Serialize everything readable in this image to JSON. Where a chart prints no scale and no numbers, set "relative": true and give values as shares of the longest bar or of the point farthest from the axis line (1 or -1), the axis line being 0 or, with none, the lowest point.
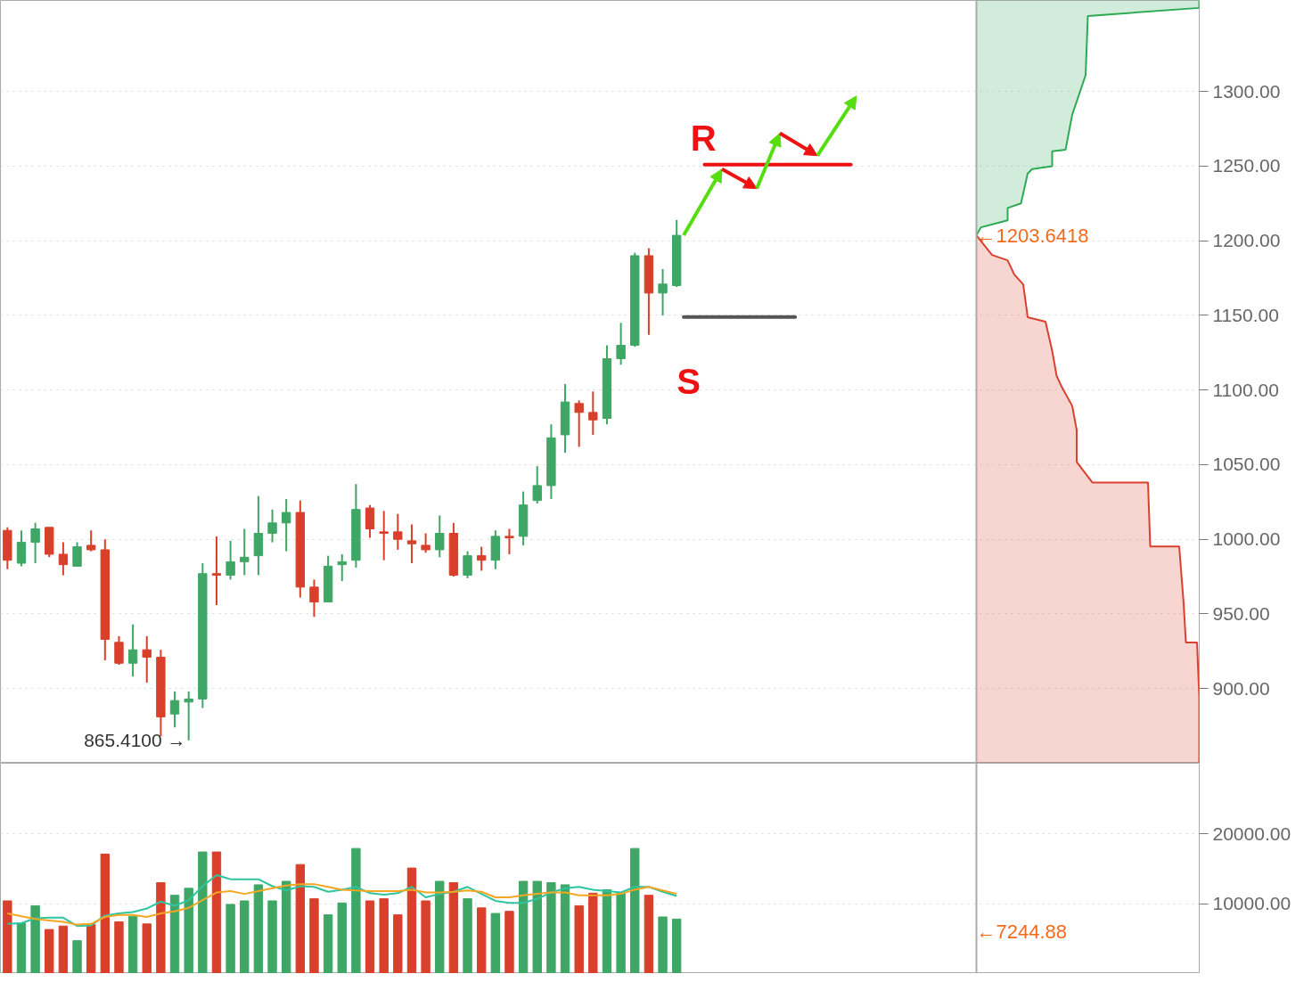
{
  "chart_data": [
    {
      "type": "candlestick",
      "categories": [
        null,
        null,
        null,
        null,
        null,
        null,
        null,
        null,
        null,
        null,
        null,
        null,
        null,
        null,
        null,
        null,
        null,
        null,
        null,
        null,
        null,
        null,
        null,
        null,
        null,
        null,
        null,
        null,
        null,
        null,
        null,
        null,
        null,
        null,
        null,
        null,
        null,
        null,
        null,
        null,
        null,
        null,
        null,
        null,
        null,
        null,
        null,
        null,
        null
      ],
      "ohlc": [
        [
          1006,
          1008,
          980,
          986
        ],
        [
          984,
          1006,
          982,
          998
        ],
        [
          998,
          1011,
          984,
          1007
        ],
        [
          1008,
          1008,
          988,
          990
        ],
        [
          990,
          998,
          976,
          983
        ],
        [
          982,
          998,
          982,
          995
        ],
        [
          996,
          1006,
          992,
          993
        ],
        [
          993,
          1000,
          919,
          933
        ],
        [
          931,
          935,
          916,
          917
        ],
        [
          917,
          943,
          908,
          926
        ],
        [
          926,
          935,
          904,
          921
        ],
        [
          921,
          926,
          868,
          881
        ],
        [
          883,
          898,
          874,
          892
        ],
        [
          891,
          898,
          865.41,
          893
        ],
        [
          893,
          984,
          887,
          977
        ],
        [
          977,
          1002,
          956,
          976
        ],
        [
          976,
          999,
          973,
          985
        ],
        [
          985,
          1007,
          976,
          988
        ],
        [
          989,
          1029,
          976,
          1004
        ],
        [
          1004,
          1020,
          998,
          1011
        ],
        [
          1011,
          1027,
          992,
          1018
        ],
        [
          1018,
          1026,
          961,
          968
        ],
        [
          968,
          973,
          948,
          958
        ],
        [
          958,
          989,
          958,
          982
        ],
        [
          983,
          990,
          972,
          985
        ],
        [
          986,
          1037,
          981,
          1020
        ],
        [
          1021,
          1023,
          1001,
          1007
        ],
        [
          1005,
          1019,
          986,
          1004
        ],
        [
          1005,
          1017,
          993,
          1000
        ],
        [
          999,
          1010,
          984,
          997
        ],
        [
          996,
          1004,
          991,
          993
        ],
        [
          993,
          1016,
          988,
          1004
        ],
        [
          1004,
          1011,
          975,
          976
        ],
        [
          976,
          992,
          974,
          989
        ],
        [
          989,
          995,
          979,
          986
        ],
        [
          986,
          1006,
          980,
          1002
        ],
        [
          1002,
          1007,
          990,
          1001
        ],
        [
          1002,
          1032,
          996,
          1023
        ],
        [
          1026,
          1049,
          1024,
          1036
        ],
        [
          1036,
          1077,
          1027,
          1068
        ],
        [
          1070,
          1104,
          1058,
          1092
        ],
        [
          1091,
          1093,
          1062,
          1085
        ],
        [
          1085,
          1099,
          1070,
          1080
        ],
        [
          1081,
          1130,
          1077,
          1121
        ],
        [
          1121,
          1145,
          1117,
          1130
        ],
        [
          1130,
          1192,
          1129,
          1190
        ],
        [
          1190,
          1195,
          1137,
          1165
        ],
        [
          1165,
          1181,
          1150,
          1171
        ],
        [
          1170,
          1214,
          1169,
          1203.6418
        ]
      ],
      "colors": [
        "#d8402c",
        "#3fa765",
        "#3fa765",
        "#d8402c",
        "#d8402c",
        "#3fa765",
        "#d8402c",
        "#d8402c",
        "#d8402c",
        "#3fa765",
        "#d8402c",
        "#d8402c",
        "#3fa765",
        "#3fa765",
        "#3fa765",
        "#d8402c",
        "#3fa765",
        "#3fa765",
        "#3fa765",
        "#3fa765",
        "#3fa765",
        "#d8402c",
        "#d8402c",
        "#3fa765",
        "#3fa765",
        "#3fa765",
        "#d8402c",
        "#d8402c",
        "#d8402c",
        "#d8402c",
        "#d8402c",
        "#3fa765",
        "#d8402c",
        "#3fa765",
        "#d8402c",
        "#3fa765",
        "#d8402c",
        "#3fa765",
        "#3fa765",
        "#3fa765",
        "#3fa765",
        "#d8402c",
        "#d8402c",
        "#3fa765",
        "#3fa765",
        "#3fa765",
        "#d8402c",
        "#3fa765",
        "#3fa765"
      ],
      "ylim": [
        850,
        1361
      ],
      "tick_labels": false,
      "grid": "y",
      "ref_lines": [
        {
          "axis": "y",
          "value": 1251,
          "label": "R",
          "color": "#ee1111"
        },
        {
          "axis": "y",
          "value": 1149,
          "label": "S",
          "color": "#555555"
        }
      ],
      "annotations": [
        "865.4100 →",
        "←1203.6418"
      ]
    },
    {
      "type": "area",
      "orientation": "horizontal",
      "relative": true,
      "series": [
        {
          "color": "#2eaa55",
          "x": [
            1203.64,
            1209,
            1213.7,
            1222,
            1225,
            1245,
            1248,
            1250,
            1260,
            1261,
            1284.5,
            1311,
            1350.6,
            1356,
            1361
          ],
          "values": [
            0,
            0.02,
            0.14,
            0.14,
            0.2,
            0.23,
            0.25,
            0.34,
            0.34,
            0.4,
            0.43,
            0.49,
            0.5,
            1,
            1
          ]
        },
        {
          "color": "#d9412e",
          "x": [
            1203.64,
            1190.5,
            1186.9,
            1177.4,
            1170.8,
            1148.8,
            1145.8,
            1126.2,
            1109.5,
            1103,
            1089.3,
            1073.2,
            1051.8,
            1038.1,
            1038.1,
            995.2,
            995.2,
            957.1,
            930.9,
            930.9,
            894.6,
            850
          ],
          "values": [
            0,
            0.07,
            0.14,
            0.17,
            0.21,
            0.23,
            0.31,
            0.34,
            0.36,
            0.38,
            0.43,
            0.45,
            0.45,
            0.52,
            0.77,
            0.78,
            0.91,
            0.93,
            0.94,
            0.99,
            1,
            1
          ]
        }
      ],
      "ylim": [
        850,
        1361
      ],
      "yticks": [
        {
          "value": 900,
          "label": "900.00"
        },
        {
          "value": 950,
          "label": "950.00"
        },
        {
          "value": 1000,
          "label": "1000.00"
        },
        {
          "value": 1050,
          "label": "1050.00"
        },
        {
          "value": 1100,
          "label": "1100.00"
        },
        {
          "value": 1150,
          "label": "1150.00"
        },
        {
          "value": 1200,
          "label": "1200.00"
        },
        {
          "value": 1250,
          "label": "1250.00"
        },
        {
          "value": 1300,
          "label": "1300.00"
        }
      ],
      "tick_labels": "y"
    },
    {
      "type": "bar",
      "categories": [
        null,
        null,
        null,
        null,
        null,
        null,
        null,
        null,
        null,
        null,
        null,
        null,
        null,
        null,
        null,
        null,
        null,
        null,
        null,
        null,
        null,
        null,
        null,
        null,
        null,
        null,
        null,
        null,
        null,
        null,
        null,
        null,
        null,
        null,
        null,
        null,
        null,
        null,
        null,
        null,
        null,
        null,
        null,
        null,
        null,
        null,
        null,
        null,
        null
      ],
      "series": [
        {
          "type": "bar",
          "values": [
            10400,
            7200,
            9700,
            6300,
            6800,
            4700,
            7000,
            17100,
            7400,
            8200,
            7100,
            13000,
            11200,
            12200,
            17400,
            17400,
            9900,
            10400,
            12700,
            10400,
            13200,
            15600,
            10700,
            8400,
            10100,
            17900,
            10400,
            10700,
            8400,
            15100,
            10400,
            13200,
            13000,
            10700,
            9400,
            8600,
            8900,
            13200,
            13200,
            13000,
            12700,
            9700,
            11500,
            12000,
            11500,
            17900,
            11200,
            8100,
            7800
          ],
          "colors": [
            "#d8402c",
            "#3fa765",
            "#3fa765",
            "#d8402c",
            "#d8402c",
            "#3fa765",
            "#d8402c",
            "#d8402c",
            "#d8402c",
            "#3fa765",
            "#d8402c",
            "#d8402c",
            "#3fa765",
            "#3fa765",
            "#3fa765",
            "#d8402c",
            "#3fa765",
            "#3fa765",
            "#3fa765",
            "#3fa765",
            "#3fa765",
            "#d8402c",
            "#d8402c",
            "#3fa765",
            "#3fa765",
            "#3fa765",
            "#d8402c",
            "#d8402c",
            "#d8402c",
            "#d8402c",
            "#d8402c",
            "#3fa765",
            "#d8402c",
            "#3fa765",
            "#d8402c",
            "#3fa765",
            "#d8402c",
            "#3fa765",
            "#3fa765",
            "#3fa765",
            "#3fa765",
            "#d8402c",
            "#d8402c",
            "#3fa765",
            "#3fa765",
            "#3fa765",
            "#d8402c",
            "#3fa765",
            "#3fa765"
          ]
        },
        {
          "type": "line",
          "color": "#2ec4a0",
          "values": [
            7100,
            7200,
            7900,
            8000,
            8000,
            6800,
            6900,
            8300,
            8600,
            8800,
            9300,
            10300,
            9700,
            10500,
            12500,
            14100,
            13500,
            13500,
            13500,
            12500,
            11900,
            12500,
            12400,
            11700,
            12000,
            12400,
            11500,
            11300,
            11500,
            12400,
            10900,
            11400,
            11700,
            12400,
            11400,
            10400,
            10100,
            10100,
            10700,
            11600,
            12200,
            12400,
            12000,
            11800,
            11600,
            12400,
            12400,
            11700,
            11100
          ]
        },
        {
          "type": "line",
          "color": "#f5a623",
          "values": [
            8600,
            8200,
            7800,
            7600,
            7400,
            7000,
            7100,
            8100,
            8400,
            8400,
            8100,
            8600,
            8900,
            9400,
            10500,
            11600,
            11800,
            11400,
            11800,
            12200,
            12600,
            12800,
            12800,
            12400,
            12000,
            11900,
            11800,
            11800,
            11800,
            12000,
            11600,
            11600,
            11700,
            11900,
            11700,
            10900,
            10900,
            11200,
            11400,
            11600,
            11600,
            11200,
            11200,
            11200,
            11400,
            12000,
            12400,
            11900,
            11400
          ]
        }
      ],
      "ylim": [
        0,
        30100
      ],
      "yticks": [
        {
          "value": 10000,
          "label": "10000.00"
        },
        {
          "value": 20000,
          "label": "20000.00"
        }
      ],
      "tick_labels": "y",
      "grid": "y",
      "annotations": [
        "←7244.88"
      ]
    }
  ]
}
